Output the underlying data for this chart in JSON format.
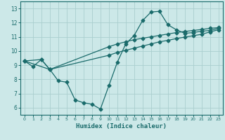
{
  "xlabel": "Humidex (Indice chaleur)",
  "ylabel": "",
  "xlim": [
    -0.5,
    23.5
  ],
  "ylim": [
    5.5,
    13.5
  ],
  "xticks": [
    0,
    1,
    2,
    3,
    4,
    5,
    6,
    7,
    8,
    9,
    10,
    11,
    12,
    13,
    14,
    15,
    16,
    17,
    18,
    19,
    20,
    21,
    22,
    23
  ],
  "yticks": [
    6,
    7,
    8,
    9,
    10,
    11,
    12,
    13
  ],
  "bg_color": "#cce8e8",
  "line_color": "#1a6b6b",
  "grid_color": "#aacece",
  "line1_x": [
    0,
    1,
    2,
    3,
    4,
    5,
    6,
    7,
    8,
    9,
    10,
    11,
    12,
    13,
    14,
    15,
    16,
    17,
    18,
    19,
    20,
    21,
    22,
    23
  ],
  "line1_y": [
    9.3,
    8.9,
    9.4,
    8.7,
    7.9,
    7.8,
    6.55,
    6.35,
    6.25,
    5.9,
    7.55,
    9.2,
    10.5,
    11.1,
    12.15,
    12.75,
    12.8,
    11.85,
    11.5,
    11.25,
    11.3,
    11.4,
    11.45,
    11.6
  ],
  "line2_x": [
    0,
    2,
    3,
    10,
    11,
    12,
    13,
    14,
    15,
    16,
    17,
    18,
    19,
    20,
    21,
    22,
    23
  ],
  "line2_y": [
    9.3,
    9.4,
    8.7,
    10.3,
    10.5,
    10.65,
    10.8,
    10.9,
    11.0,
    11.1,
    11.2,
    11.3,
    11.38,
    11.45,
    11.52,
    11.6,
    11.65
  ],
  "line3_x": [
    0,
    3,
    10,
    11,
    12,
    13,
    14,
    15,
    16,
    17,
    18,
    19,
    20,
    21,
    22,
    23
  ],
  "line3_y": [
    9.3,
    8.7,
    9.7,
    9.9,
    10.05,
    10.2,
    10.35,
    10.5,
    10.65,
    10.75,
    10.88,
    10.98,
    11.08,
    11.18,
    11.35,
    11.5
  ],
  "marker": "D",
  "markersize": 2.5,
  "linewidth": 0.9
}
